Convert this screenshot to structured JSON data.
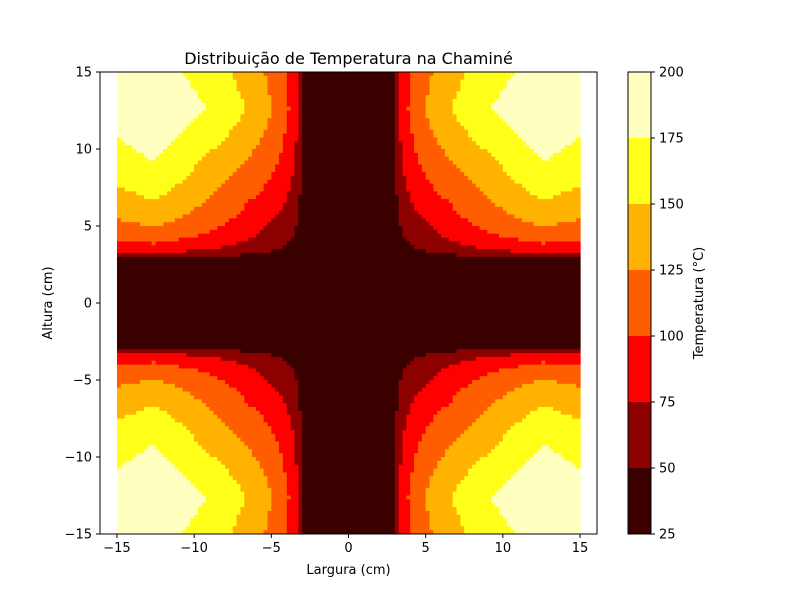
{
  "chart_data": {
    "type": "heatmap",
    "subtype": "filled-contour",
    "title": "Distribuição de Temperatura na Chaminé",
    "xlabel": "Largura (cm)",
    "ylabel": "Altura (cm)",
    "xlim": [
      -16.1,
      16.1
    ],
    "ylim": [
      -15,
      15
    ],
    "xticks": [
      -15,
      -10,
      -5,
      0,
      5,
      10,
      15
    ],
    "yticks": [
      -15,
      -10,
      -5,
      0,
      5,
      10,
      15
    ],
    "domain": {
      "x": [
        -15,
        15
      ],
      "y": [
        -15,
        15
      ],
      "inner_cold_half_width": 3
    },
    "boundary_temperature": 200,
    "core_temperature": 25,
    "colorbar": {
      "label": "Temperatura (°C)",
      "levels": [
        25,
        50,
        75,
        100,
        125,
        150,
        175,
        200
      ],
      "ticks": [
        25,
        50,
        75,
        100,
        125,
        150,
        175,
        200
      ],
      "colors": [
        "#3a0000",
        "#8c0000",
        "#ff0000",
        "#ff5e00",
        "#ffb200",
        "#ffff1a",
        "#ffffc0"
      ]
    },
    "grid": false
  }
}
